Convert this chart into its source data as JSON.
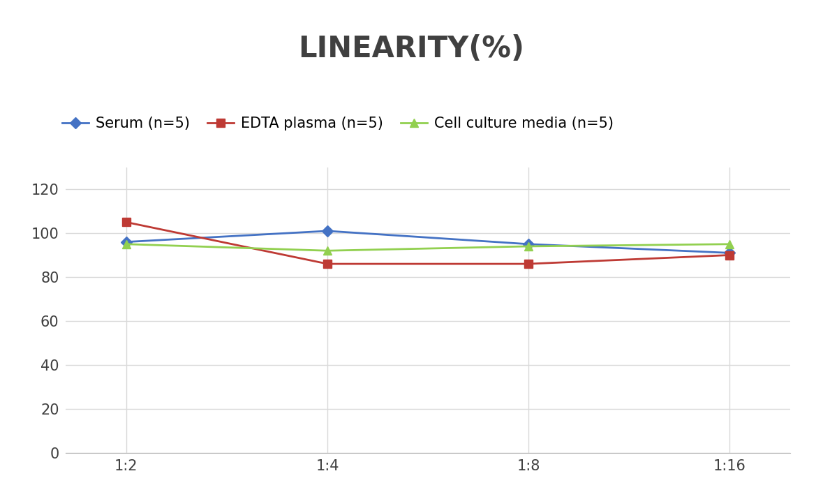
{
  "title": "LINEARITY(%)",
  "title_fontsize": 30,
  "title_fontweight": "bold",
  "x_labels": [
    "1:2",
    "1:4",
    "1:8",
    "1:16"
  ],
  "series": [
    {
      "label": "Serum (n=5)",
      "values": [
        96,
        101,
        95,
        91
      ],
      "color": "#4472C4",
      "marker": "D",
      "markersize": 8,
      "linewidth": 2
    },
    {
      "label": "EDTA plasma (n=5)",
      "values": [
        105,
        86,
        86,
        90
      ],
      "color": "#BE3A34",
      "marker": "s",
      "markersize": 8,
      "linewidth": 2
    },
    {
      "label": "Cell culture media (n=5)",
      "values": [
        95,
        92,
        94,
        95
      ],
      "color": "#92D050",
      "marker": "^",
      "markersize": 9,
      "linewidth": 2
    }
  ],
  "ylim": [
    0,
    130
  ],
  "yticks": [
    0,
    20,
    40,
    60,
    80,
    100,
    120
  ],
  "grid_color": "#D9D9D9",
  "background_color": "#FFFFFF",
  "legend_fontsize": 15,
  "tick_fontsize": 15,
  "title_color": "#404040"
}
